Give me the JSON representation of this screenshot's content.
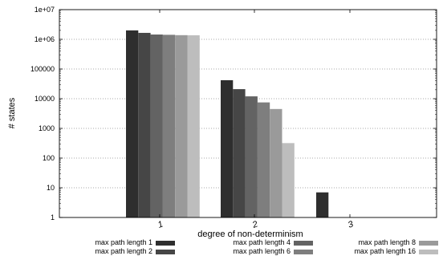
{
  "chart_data": {
    "type": "bar",
    "xlabel": "degree of non-determinism",
    "ylabel": "# states",
    "yscale": "log",
    "ylim": [
      1,
      10000000
    ],
    "grid": "horizontal dotted",
    "legend_position": "bottom",
    "categories": [
      "1",
      "2",
      "3"
    ],
    "yticks": [
      "1",
      "10",
      "100",
      "1000",
      "10000",
      "100000",
      "1e+06",
      "1e+07"
    ],
    "series": [
      {
        "name": "max path length 1",
        "color": "#2e2e2e",
        "values": [
          2000000,
          42000,
          7
        ]
      },
      {
        "name": "max path length 2",
        "color": "#464646",
        "values": [
          1650000,
          21000,
          null
        ]
      },
      {
        "name": "max path length 4",
        "color": "#636363",
        "values": [
          1450000,
          12000,
          null
        ]
      },
      {
        "name": "max path length 6",
        "color": "#7e7e7e",
        "values": [
          1420000,
          7500,
          null
        ]
      },
      {
        "name": "max path length 8",
        "color": "#9a9a9a",
        "values": [
          1380000,
          4500,
          null
        ]
      },
      {
        "name": "max path length 16",
        "color": "#bdbdbd",
        "values": [
          1370000,
          320,
          null
        ]
      }
    ]
  }
}
